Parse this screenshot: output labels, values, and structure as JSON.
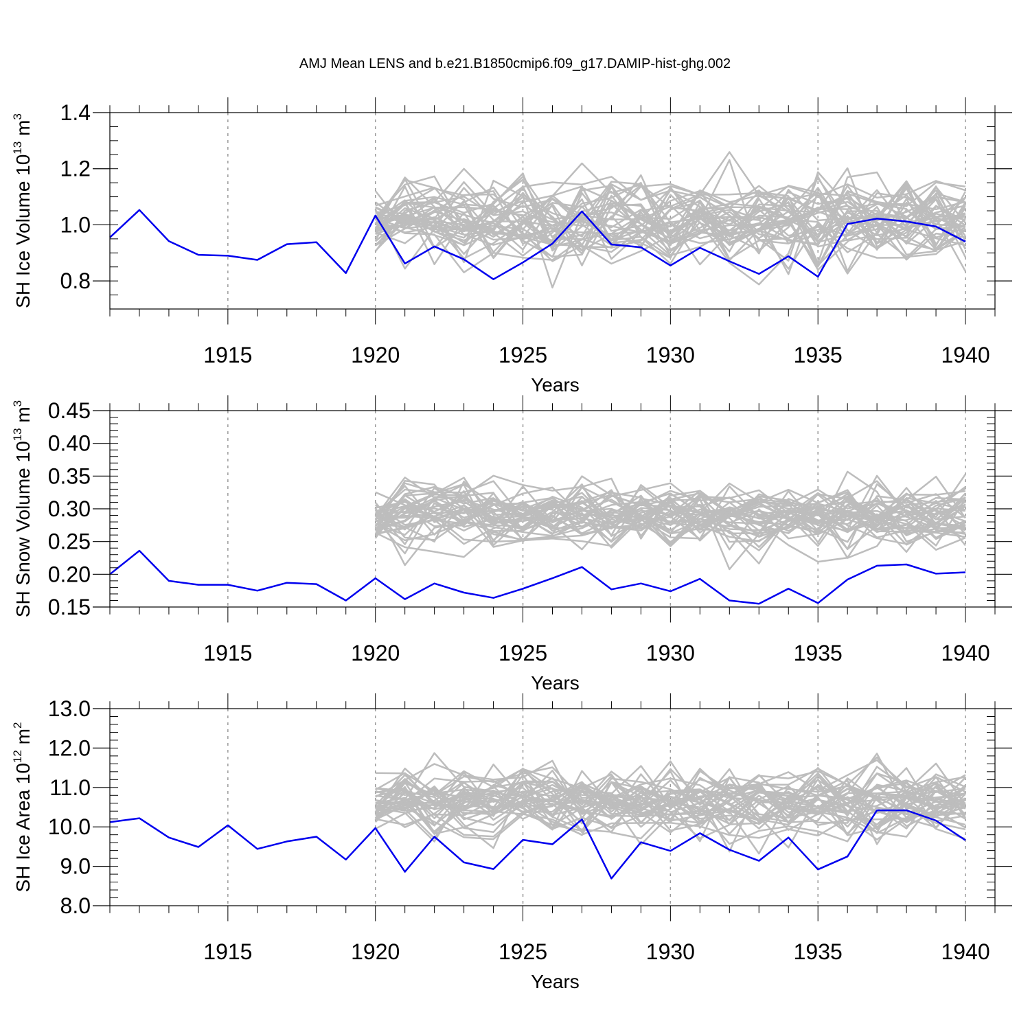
{
  "title": "AMJ Mean LENS and b.e21.B1850cmip6.f09_g17.DAMIP-hist-ghg.002",
  "colors": {
    "ensemble": "#bdbdbd",
    "simulation": "#0000ee",
    "gridline": "#9a9a9a"
  },
  "chart_data": [
    {
      "type": "line",
      "id": "ice-volume",
      "xlabel": "Years",
      "ylabel": {
        "prefix": "SH Ice Volume 10",
        "exp1": "13",
        "mid": " m",
        "exp2": "3"
      },
      "xlim": [
        1911,
        1941
      ],
      "ylim": [
        0.7,
        1.4
      ],
      "xticks": [
        "1915",
        "1920",
        "1925",
        "1930",
        "1935",
        "1940"
      ],
      "yticks": [
        {
          "value": 0.8,
          "label": "0.8"
        },
        {
          "value": 1.0,
          "label": "1.0"
        },
        {
          "value": 1.2,
          "label": "1.2"
        },
        {
          "value": 1.4,
          "label": "1.4"
        }
      ],
      "y_minor_step": 0.05,
      "ensemble": {
        "start": 1920,
        "end": 1940,
        "members": 40,
        "mean": 1.02,
        "sd": 0.085
      },
      "series": [
        {
          "name": "b.e21.B1850cmip6.f09_g17.DAMIP-hist-ghg.002",
          "x": [
            1911,
            1912,
            1913,
            1914,
            1915,
            1916,
            1917,
            1918,
            1919,
            1920,
            1921,
            1922,
            1923,
            1924,
            1925,
            1926,
            1927,
            1928,
            1929,
            1930,
            1931,
            1932,
            1933,
            1934,
            1935,
            1936,
            1937,
            1938,
            1939,
            1940
          ],
          "values": [
            0.955,
            1.053,
            0.942,
            0.893,
            0.89,
            0.875,
            0.931,
            0.938,
            0.828,
            1.033,
            0.862,
            0.923,
            0.877,
            0.806,
            0.866,
            0.933,
            1.048,
            0.93,
            0.92,
            0.855,
            0.918,
            0.87,
            0.825,
            0.888,
            0.815,
            1.003,
            1.022,
            1.012,
            0.994,
            0.94
          ]
        }
      ]
    },
    {
      "type": "line",
      "id": "snow-volume",
      "xlabel": "Years",
      "ylabel": {
        "prefix": "SH Snow Volume 10",
        "exp1": "13",
        "mid": " m",
        "exp2": "3"
      },
      "xlim": [
        1911,
        1941
      ],
      "ylim": [
        0.15,
        0.45
      ],
      "xticks": [
        "1915",
        "1920",
        "1925",
        "1930",
        "1935",
        "1940"
      ],
      "yticks": [
        {
          "value": 0.15,
          "label": "0.15"
        },
        {
          "value": 0.2,
          "label": "0.20"
        },
        {
          "value": 0.25,
          "label": "0.25"
        },
        {
          "value": 0.3,
          "label": "0.30"
        },
        {
          "value": 0.35,
          "label": "0.35"
        },
        {
          "value": 0.4,
          "label": "0.40"
        },
        {
          "value": 0.45,
          "label": "0.45"
        }
      ],
      "y_minor_step": 0.01,
      "ensemble": {
        "start": 1920,
        "end": 1940,
        "members": 40,
        "mean": 0.288,
        "sd": 0.028
      },
      "series": [
        {
          "name": "b.e21.B1850cmip6.f09_g17.DAMIP-hist-ghg.002",
          "x": [
            1911,
            1912,
            1913,
            1914,
            1915,
            1916,
            1917,
            1918,
            1919,
            1920,
            1921,
            1922,
            1923,
            1924,
            1925,
            1926,
            1927,
            1928,
            1929,
            1930,
            1931,
            1932,
            1933,
            1934,
            1935,
            1936,
            1937,
            1938,
            1939,
            1940
          ],
          "values": [
            0.2,
            0.236,
            0.19,
            0.184,
            0.184,
            0.175,
            0.187,
            0.185,
            0.16,
            0.194,
            0.162,
            0.186,
            0.172,
            0.164,
            0.178,
            0.194,
            0.211,
            0.177,
            0.186,
            0.174,
            0.193,
            0.16,
            0.155,
            0.178,
            0.156,
            0.192,
            0.213,
            0.215,
            0.201,
            0.203
          ]
        }
      ]
    },
    {
      "type": "line",
      "id": "ice-area",
      "xlabel": "Years",
      "ylabel": {
        "prefix": "SH Ice Area 10",
        "exp1": "12",
        "mid": " m",
        "exp2": "2"
      },
      "xlim": [
        1911,
        1941
      ],
      "ylim": [
        8.0,
        13.0
      ],
      "xticks": [
        "1915",
        "1920",
        "1925",
        "1930",
        "1935",
        "1940"
      ],
      "yticks": [
        {
          "value": 8.0,
          "label": "8.0"
        },
        {
          "value": 9.0,
          "label": "9.0"
        },
        {
          "value": 10.0,
          "label": "10.0"
        },
        {
          "value": 11.0,
          "label": "11.0"
        },
        {
          "value": 12.0,
          "label": "12.0"
        },
        {
          "value": 13.0,
          "label": "13.0"
        }
      ],
      "y_minor_step": 0.2,
      "ensemble": {
        "start": 1920,
        "end": 1940,
        "members": 40,
        "mean": 10.65,
        "sd": 0.5
      },
      "series": [
        {
          "name": "b.e21.B1850cmip6.f09_g17.DAMIP-hist-ghg.002",
          "x": [
            1911,
            1912,
            1913,
            1914,
            1915,
            1916,
            1917,
            1918,
            1919,
            1920,
            1921,
            1922,
            1923,
            1924,
            1925,
            1926,
            1927,
            1928,
            1929,
            1930,
            1931,
            1932,
            1933,
            1934,
            1935,
            1936,
            1937,
            1938,
            1939,
            1940
          ],
          "values": [
            10.12,
            10.22,
            9.73,
            9.49,
            10.04,
            9.44,
            9.63,
            9.75,
            9.17,
            9.97,
            8.86,
            9.75,
            9.1,
            8.93,
            9.67,
            9.56,
            10.19,
            8.69,
            9.61,
            9.39,
            9.84,
            9.42,
            9.14,
            9.73,
            8.92,
            9.25,
            10.42,
            10.42,
            10.16,
            9.66
          ]
        }
      ]
    }
  ]
}
